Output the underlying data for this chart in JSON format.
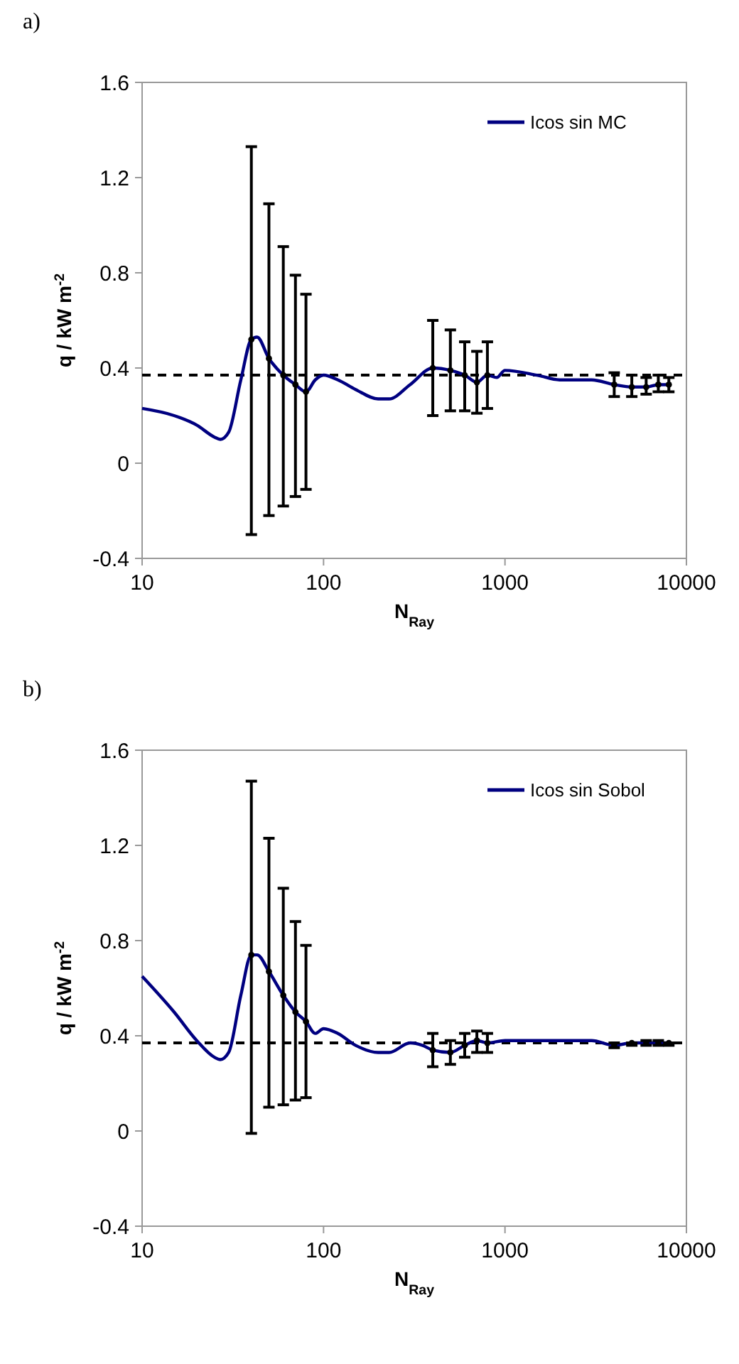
{
  "chart_data": [
    {
      "type": "line",
      "title": "a)",
      "xlabel": "N$_{Ray}$",
      "ylabel": "q / kW m$^{-2}$",
      "log": "x",
      "grid": false,
      "legend": "top right",
      "xlim": [
        10,
        10000
      ],
      "xticks": [
        10,
        100,
        1000,
        10000
      ],
      "ylim": [
        -0.4,
        1.6
      ],
      "yticks": [
        -0.4,
        0,
        0.4,
        0.8,
        1.2,
        1.6
      ],
      "ref_lines": [
        {
          "axis": "y",
          "value": 0.37,
          "color": "#000000",
          "line_style": "dashed"
        }
      ],
      "series": [
        {
          "name": "Icos sin MC",
          "color": "#000080",
          "marker": "none",
          "x": [
            10,
            15,
            20,
            25,
            27,
            30,
            35,
            40,
            43,
            50,
            60,
            70,
            80,
            90,
            100,
            120,
            150,
            200,
            230,
            300,
            400,
            500,
            600,
            700,
            800,
            900,
            1000,
            1500,
            2000,
            3000,
            4000,
            5000,
            6000,
            7000,
            8000
          ],
          "values": [
            0.23,
            0.2,
            0.16,
            0.11,
            0.1,
            0.13,
            0.35,
            0.52,
            0.53,
            0.44,
            0.37,
            0.33,
            0.3,
            0.35,
            0.37,
            0.35,
            0.31,
            0.27,
            0.27,
            0.33,
            0.4,
            0.39,
            0.37,
            0.34,
            0.37,
            0.36,
            0.39,
            0.37,
            0.35,
            0.35,
            0.33,
            0.32,
            0.32,
            0.33,
            0.33
          ]
        },
        {
          "type": "scatter",
          "color": "#000000",
          "marker": "circle",
          "x": [
            40,
            50,
            60,
            70,
            80,
            400,
            500,
            600,
            700,
            800,
            4000,
            5000,
            6000,
            7000,
            8000
          ],
          "values": [
            0.52,
            0.44,
            0.37,
            0.33,
            0.3,
            0.4,
            0.39,
            0.37,
            0.34,
            0.37,
            0.33,
            0.32,
            0.32,
            0.33,
            0.33
          ],
          "errors": [
            [
              -0.3,
              1.33
            ],
            [
              -0.22,
              1.09
            ],
            [
              -0.18,
              0.91
            ],
            [
              -0.14,
              0.79
            ],
            [
              -0.11,
              0.71
            ],
            [
              0.2,
              0.6
            ],
            [
              0.22,
              0.56
            ],
            [
              0.22,
              0.51
            ],
            [
              0.21,
              0.47
            ],
            [
              0.23,
              0.51
            ],
            [
              0.28,
              0.38
            ],
            [
              0.28,
              0.37
            ],
            [
              0.29,
              0.36
            ],
            [
              0.3,
              0.37
            ],
            [
              0.3,
              0.36
            ]
          ]
        }
      ]
    },
    {
      "type": "line",
      "title": "b)",
      "xlabel": "N$_{Ray}$",
      "ylabel": "q / kW m$^{-2}$",
      "log": "x",
      "grid": false,
      "legend": "top right",
      "xlim": [
        10,
        10000
      ],
      "xticks": [
        10,
        100,
        1000,
        10000
      ],
      "ylim": [
        -0.4,
        1.6
      ],
      "yticks": [
        -0.4,
        0,
        0.4,
        0.8,
        1.2,
        1.6
      ],
      "ref_lines": [
        {
          "axis": "y",
          "value": 0.37,
          "color": "#000000",
          "line_style": "dashed"
        }
      ],
      "series": [
        {
          "name": "Icos sin Sobol",
          "color": "#000080",
          "marker": "none",
          "x": [
            10,
            15,
            20,
            25,
            27,
            30,
            35,
            40,
            43,
            50,
            60,
            70,
            80,
            90,
            100,
            120,
            150,
            200,
            230,
            300,
            350,
            400,
            500,
            600,
            700,
            800,
            1000,
            2000,
            3000,
            4000,
            5000,
            8000
          ],
          "values": [
            0.65,
            0.5,
            0.38,
            0.31,
            0.3,
            0.33,
            0.57,
            0.74,
            0.74,
            0.67,
            0.57,
            0.5,
            0.46,
            0.41,
            0.43,
            0.41,
            0.36,
            0.33,
            0.33,
            0.37,
            0.36,
            0.34,
            0.33,
            0.36,
            0.38,
            0.37,
            0.38,
            0.38,
            0.38,
            0.36,
            0.37,
            0.37
          ]
        },
        {
          "type": "scatter",
          "color": "#000000",
          "marker": "circle",
          "x": [
            40,
            50,
            60,
            70,
            80,
            400,
            500,
            600,
            700,
            800,
            4000,
            5000,
            6000,
            7000,
            8000
          ],
          "values": [
            0.74,
            0.67,
            0.57,
            0.5,
            0.46,
            0.34,
            0.33,
            0.36,
            0.38,
            0.37,
            0.36,
            0.37,
            0.37,
            0.37,
            0.37
          ],
          "errors": [
            [
              -0.01,
              1.47
            ],
            [
              0.1,
              1.23
            ],
            [
              0.11,
              1.02
            ],
            [
              0.13,
              0.88
            ],
            [
              0.14,
              0.78
            ],
            [
              0.27,
              0.41
            ],
            [
              0.28,
              0.38
            ],
            [
              0.31,
              0.41
            ],
            [
              0.33,
              0.42
            ],
            [
              0.33,
              0.41
            ],
            [
              0.35,
              0.37
            ],
            [
              0.36,
              0.37
            ],
            [
              0.36,
              0.38
            ],
            [
              0.36,
              0.38
            ],
            [
              0.36,
              0.37
            ]
          ]
        }
      ]
    }
  ]
}
